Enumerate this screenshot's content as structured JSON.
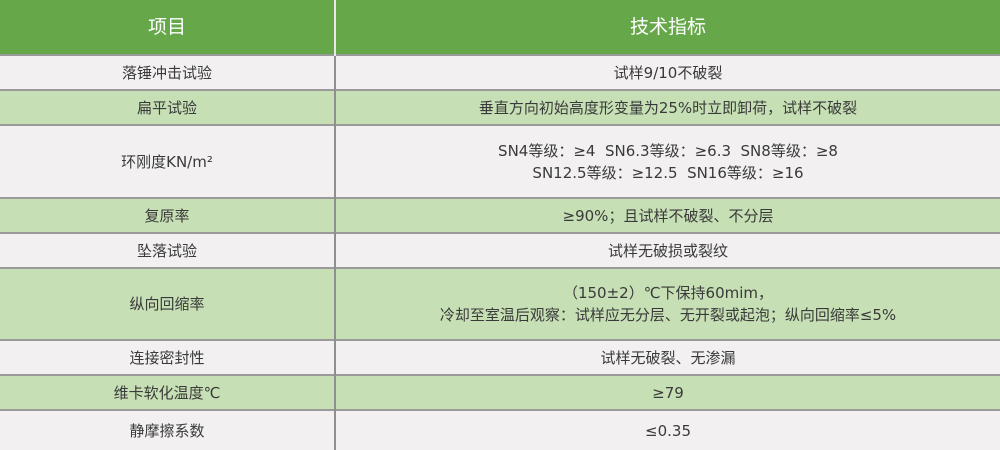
{
  "header": {
    "col1": "项目",
    "col2": "技术指标"
  },
  "rows": [
    {
      "item": "落锤冲击试验",
      "spec": [
        "试样9/10不破裂"
      ]
    },
    {
      "item": "扁平试验",
      "spec": [
        "垂直方向初始高度形变量为25%时立即卸荷，试样不破裂"
      ]
    },
    {
      "item": "环刚度KN/m²",
      "spec": [
        "SN4等级：≥4  SN6.3等级：≥6.3  SN8等级：≥8",
        "SN12.5等级：≥12.5  SN16等级：≥16"
      ]
    },
    {
      "item": "复原率",
      "spec": [
        "≥90%；且试样不破裂、不分层"
      ]
    },
    {
      "item": "坠落试验",
      "spec": [
        "试样无破损或裂纹"
      ]
    },
    {
      "item": "纵向回缩率",
      "spec": [
        "（150±2）℃下保持60mim，",
        "冷却至室温后观察：试样应无分层、无开裂或起泡；纵向回缩率≤5%"
      ]
    },
    {
      "item": "连接密封性",
      "spec": [
        "试样无破裂、无渗漏"
      ]
    },
    {
      "item": "维卡软化温度℃",
      "spec": [
        "≥79"
      ]
    },
    {
      "item": "静摩擦系数",
      "spec": [
        "≤0.35"
      ]
    }
  ],
  "colors": {
    "header": "#66a849",
    "row_alt": "#c6dfb4",
    "row": "#f2f0f1"
  }
}
